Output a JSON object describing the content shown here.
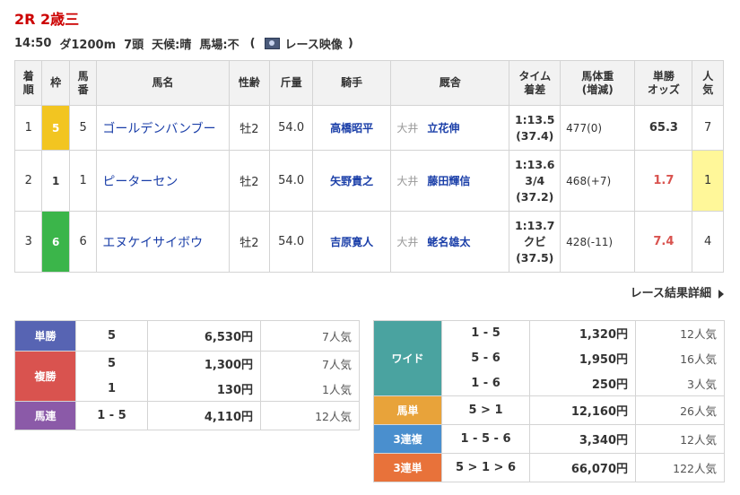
{
  "race": {
    "title": "2R 2歳三",
    "time": "14:50",
    "course": "ダ1200m",
    "heads": "7頭",
    "weather": "天候:晴",
    "track": "馬場:不",
    "video_open": "(",
    "video_label": "レース映像",
    "video_close": ")"
  },
  "table": {
    "headers": {
      "rank": [
        "着",
        "順"
      ],
      "waku": "枠",
      "num": [
        "馬",
        "番"
      ],
      "horse": "馬名",
      "sex_age": "性齢",
      "kinryo": "斤量",
      "jockey": "騎手",
      "trainer": "厩舎",
      "time": [
        "タイム",
        "着差"
      ],
      "weight": [
        "馬体重",
        "(増減)"
      ],
      "odds": [
        "単勝",
        "オッズ"
      ],
      "pop": [
        "人",
        "気"
      ]
    },
    "rows": [
      {
        "rank": "1",
        "waku": "5",
        "num": "5",
        "horse": "ゴールデンバンブー",
        "sex_age": "牡2",
        "kinryo": "54.0",
        "jockey": "高橋昭平",
        "trainer_area": "大井",
        "trainer": "立花伸",
        "time": "1:13.5",
        "margin": "",
        "last": "(37.4)",
        "weight": "477(0)",
        "odds": "65.3",
        "pop": "7"
      },
      {
        "rank": "2",
        "waku": "1",
        "num": "1",
        "horse": "ピーターセン",
        "sex_age": "牡2",
        "kinryo": "54.0",
        "jockey": "矢野貴之",
        "trainer_area": "大井",
        "trainer": "藤田輝信",
        "time": "1:13.6",
        "margin": "3/4",
        "last": "(37.2)",
        "weight": "468(+7)",
        "odds": "1.7",
        "pop": "1"
      },
      {
        "rank": "3",
        "waku": "6",
        "num": "6",
        "horse": "エヌケイサイボウ",
        "sex_age": "牡2",
        "kinryo": "54.0",
        "jockey": "吉原寛人",
        "trainer_area": "大井",
        "trainer": "蛯名雄太",
        "time": "1:13.7",
        "margin": "クビ",
        "last": "(37.5)",
        "weight": "428(-11)",
        "odds": "7.4",
        "pop": "4"
      }
    ],
    "waku_colors": {
      "1": "#ffffff",
      "5": "#f2c521",
      "6": "#3bb54a"
    }
  },
  "details_link": "レース結果詳細",
  "payouts_left": {
    "tansho": {
      "label": "単勝",
      "rows": [
        {
          "combo": "5",
          "amount": "6,530円",
          "pop": "7人気"
        }
      ]
    },
    "fukusho": {
      "label": "複勝",
      "rows": [
        {
          "combo": "5",
          "amount": "1,300円",
          "pop": "7人気"
        },
        {
          "combo": "1",
          "amount": "130円",
          "pop": "1人気"
        }
      ]
    },
    "umaren": {
      "label": "馬連",
      "rows": [
        {
          "combo": "1 - 5",
          "amount": "4,110円",
          "pop": "12人気"
        }
      ]
    }
  },
  "payouts_right": {
    "wide": {
      "label": "ワイド",
      "rows": [
        {
          "combo": "1 - 5",
          "amount": "1,320円",
          "pop": "12人気"
        },
        {
          "combo": "5 - 6",
          "amount": "1,950円",
          "pop": "16人気"
        },
        {
          "combo": "1 - 6",
          "amount": "250円",
          "pop": "3人気"
        }
      ]
    },
    "umatan": {
      "label": "馬単",
      "rows": [
        {
          "combo": "5 > 1",
          "amount": "12,160円",
          "pop": "26人気"
        }
      ]
    },
    "sanrenpuku": {
      "label": "3連複",
      "rows": [
        {
          "combo": "1 - 5 - 6",
          "amount": "3,340円",
          "pop": "12人気"
        }
      ]
    },
    "sanrentan": {
      "label": "3連単",
      "rows": [
        {
          "combo": "5 > 1 > 6",
          "amount": "66,070円",
          "pop": "122人気"
        }
      ]
    }
  },
  "colors": {
    "title": "#cc0000",
    "link": "#1a3ea8",
    "odds_hot": "#d9534f",
    "fav_bg": "#fff799"
  }
}
